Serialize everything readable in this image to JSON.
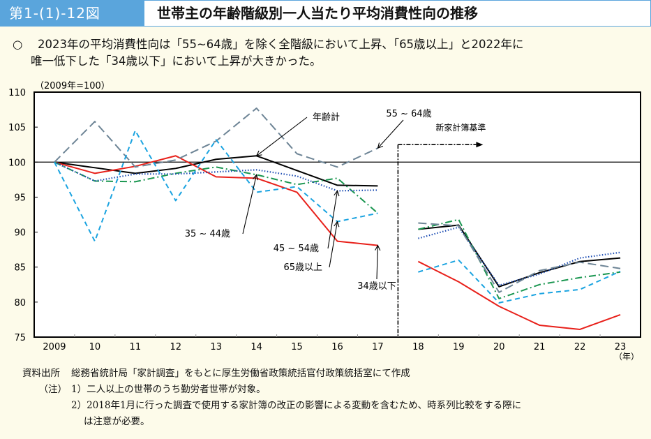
{
  "header": {
    "figure_number": "第1-(1)-12図",
    "title": "世帯主の年齢階級別一人当たり平均消費性向の推移"
  },
  "summary": {
    "bullet": "○",
    "line1": "2023年の平均消費性向は「55~64歳」を除く全階級において上昇、「65歳以上」と2022年に",
    "line2": "唯一低下した「34歳以下」において上昇が大きかった。"
  },
  "chart_data": {
    "type": "line",
    "title": "世帯主の年齢階級別一人当たり平均消費性向の推移",
    "unit_note": "（2009年=100）",
    "xlabel": "（年）",
    "ylabel": "",
    "ylim": [
      75,
      110
    ],
    "yticks": [
      75,
      80,
      85,
      90,
      95,
      100,
      105,
      110
    ],
    "categories": [
      "2009",
      "10",
      "11",
      "12",
      "13",
      "14",
      "15",
      "16",
      "17",
      "18",
      "19",
      "20",
      "21",
      "22",
      "23"
    ],
    "reference_line": 100,
    "break_after_index": 8,
    "break_annotation": "新家計簿基準",
    "grid": false,
    "series": [
      {
        "name": "年齢計",
        "color": "#000000",
        "style": "solid",
        "values": [
          100,
          99.2,
          98.4,
          99.1,
          100.4,
          100.9,
          98.8,
          96.7,
          96.6,
          90.4,
          91.0,
          82.2,
          84.2,
          85.8,
          86.3
        ]
      },
      {
        "name": "34歳以下",
        "color": "#e8201a",
        "style": "solid",
        "values": [
          100,
          98.4,
          99.4,
          100.9,
          97.9,
          97.7,
          95.7,
          88.7,
          88.1,
          85.8,
          82.9,
          79.4,
          76.7,
          76.1,
          78.2
        ]
      },
      {
        "name": "35 ~ 44歳",
        "color": "#1a9650",
        "style": "dashdot",
        "values": [
          100,
          97.3,
          97.2,
          98.4,
          99.3,
          98.2,
          96.8,
          97.7,
          92.7,
          90.4,
          91.8,
          80.5,
          82.5,
          83.5,
          84.3
        ]
      },
      {
        "name": "45 ~ 54歳",
        "color": "#1f4fb4",
        "style": "dotted",
        "values": [
          100,
          97.3,
          98.3,
          98.3,
          98.6,
          98.9,
          98.0,
          95.9,
          96.0,
          89.1,
          90.7,
          82.4,
          84.0,
          86.3,
          87.1
        ]
      },
      {
        "name": "55 ~ 64歳",
        "color": "#6e8596",
        "style": "longdash",
        "values": [
          100,
          105.8,
          99.3,
          100.3,
          103.0,
          107.7,
          101.2,
          99.3,
          102.0,
          91.3,
          90.9,
          81.4,
          84.5,
          85.7,
          84.8
        ]
      },
      {
        "name": "65歳以上",
        "color": "#1aa3e0",
        "style": "dash",
        "values": [
          100,
          88.7,
          104.5,
          94.5,
          103.2,
          95.7,
          96.5,
          91.5,
          92.7,
          84.3,
          86.0,
          79.9,
          81.2,
          81.8,
          84.4
        ]
      }
    ],
    "annotations": [
      {
        "text": "年齢計",
        "series": "年齢計",
        "category": "14"
      },
      {
        "text": "55 ~ 64歳",
        "series": "55 ~ 64歳",
        "category": "17"
      },
      {
        "text": "35 ~ 44歳",
        "series": "35 ~ 44歳",
        "category": "14"
      },
      {
        "text": "45 ~ 54歳",
        "series": "45 ~ 54歳",
        "category": "16"
      },
      {
        "text": "65歳以上",
        "series": "65歳以上",
        "category": "16"
      },
      {
        "text": "34歳以下",
        "series": "34歳以下",
        "category": "17"
      }
    ]
  },
  "notes": {
    "source_label": "資料出所",
    "source_text": "総務省統計局「家計調査」をもとに厚生労働省政策統括官付政策統括室にて作成",
    "note_label": "（注）",
    "note1": "1）二人以上の世帯のうち勤労者世帯が対象。",
    "note2": "2）2018年1月に行った調査で使用する家計簿の改正の影響による変動を含むため、時系列比較をする際に",
    "note2_cont": "は注意が必要。"
  },
  "colors": {
    "header_blue": "#5aa5dc",
    "background": "#fdfbea"
  }
}
